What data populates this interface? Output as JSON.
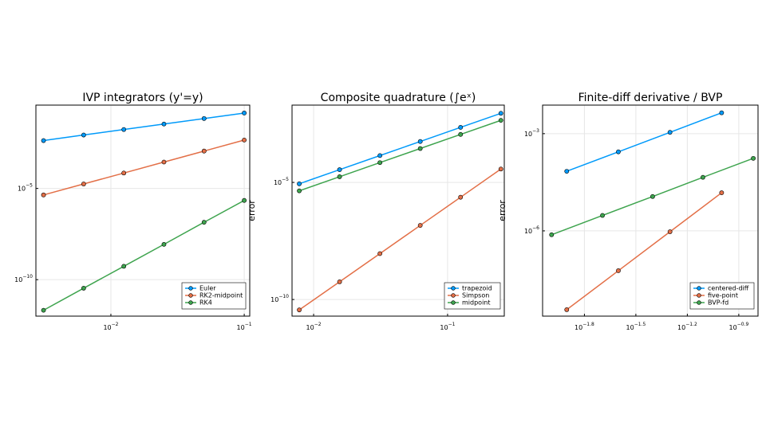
{
  "chart_data": [
    {
      "type": "line",
      "title": "IVP integrators  (y'=y)",
      "log_x": true,
      "log_y": true,
      "grid": true,
      "legend": "bottom-right",
      "x": [
        0.003125,
        0.00625,
        0.0125,
        0.025,
        0.05,
        0.1
      ],
      "xlim": [
        0.00274,
        0.11
      ],
      "ylim": [
        1e-12,
        0.37
      ],
      "xticks": [
        {
          "value": 0.01,
          "label": "10",
          "exponent": "−2"
        },
        {
          "value": 0.1,
          "label": "10",
          "exponent": "−1"
        }
      ],
      "yticks": [
        {
          "value": 1e-05,
          "label": "10",
          "exponent": "−5"
        },
        {
          "value": 1e-10,
          "label": "10",
          "exponent": "−10"
        }
      ],
      "series": [
        {
          "name": "Euler",
          "color": "#009afa",
          "values": [
            0.0042,
            0.0085,
            0.017,
            0.034,
            0.068,
            0.136
          ]
        },
        {
          "name": "RK2-midpoint",
          "color": "#e36f47",
          "values": [
            4.4e-06,
            1.76e-05,
            7e-05,
            0.00028,
            0.00112,
            0.0045
          ]
        },
        {
          "name": "RK4",
          "color": "#3ea44e",
          "values": [
            2.1e-12,
            3.4e-11,
            5.4e-10,
            8.6e-09,
            1.4e-07,
            2.2e-06
          ]
        }
      ]
    },
    {
      "type": "line",
      "title": "Composite quadrature  (∫eˣ)",
      "ylabel": "error",
      "log_x": true,
      "log_y": true,
      "grid": true,
      "legend": "bottom-right",
      "x": [
        0.0078125,
        0.015625,
        0.03125,
        0.0625,
        0.125,
        0.25
      ],
      "xlim": [
        0.0069,
        0.265
      ],
      "ylim": [
        1.95e-11,
        0.02
      ],
      "xticks": [
        {
          "value": 0.01,
          "label": "10",
          "exponent": "−2"
        },
        {
          "value": 0.1,
          "label": "10",
          "exponent": "−1"
        }
      ],
      "yticks": [
        {
          "value": 1e-05,
          "label": "10",
          "exponent": "−5"
        },
        {
          "value": 1e-10,
          "label": "10",
          "exponent": "−10"
        }
      ],
      "series": [
        {
          "name": "trapezoid",
          "color": "#009afa",
          "values": [
            8.74e-06,
            3.5e-05,
            0.00014,
            0.000559,
            0.00224,
            0.00894
          ]
        },
        {
          "name": "Simpson",
          "color": "#e36f47",
          "values": [
            3.6e-11,
            5.7e-10,
            9.1e-09,
            1.46e-07,
            2.33e-06,
            3.73e-05
          ]
        },
        {
          "name": "midpoint",
          "color": "#3ea44e",
          "values": [
            4.37e-06,
            1.75e-05,
            7e-05,
            0.00028,
            0.00112,
            0.00447
          ]
        }
      ]
    },
    {
      "type": "line",
      "title": "Finite-diff derivative / BVP",
      "ylabel": "error",
      "log_x": true,
      "log_y": true,
      "grid": true,
      "legend": "bottom-right",
      "xlim": [
        0.00904,
        0.163
      ],
      "ylim": [
        2.34e-09,
        0.0076
      ],
      "xticks": [
        {
          "value": 0.01585,
          "label": "10",
          "exponent": "−1.8"
        },
        {
          "value": 0.03162,
          "label": "10",
          "exponent": "−1.5"
        },
        {
          "value": 0.0631,
          "label": "10",
          "exponent": "−1.2"
        },
        {
          "value": 0.1259,
          "label": "10",
          "exponent": "−0.9"
        }
      ],
      "yticks": [
        {
          "value": 0.001,
          "label": "10",
          "exponent": "−3"
        },
        {
          "value": 1e-06,
          "label": "10",
          "exponent": "−6"
        }
      ],
      "series": [
        {
          "name": "centered-diff",
          "color": "#009afa",
          "x": [
            0.0125,
            0.025,
            0.05,
            0.1
          ],
          "values": [
            6.9e-05,
            0.000275,
            0.0011,
            0.0044
          ]
        },
        {
          "name": "five-point",
          "color": "#e36f47",
          "x": [
            0.0125,
            0.025,
            0.05,
            0.1
          ],
          "values": [
            3.7e-09,
            5.9e-08,
            9.4e-07,
            1.5e-05
          ]
        },
        {
          "name": "BVP-fd",
          "color": "#3ea44e",
          "x": [
            0.0102,
            0.0202,
            0.0396,
            0.0778,
            0.153
          ],
          "values": [
            7.6e-07,
            3e-06,
            1.15e-05,
            4.5e-05,
            0.000173
          ]
        }
      ]
    }
  ]
}
